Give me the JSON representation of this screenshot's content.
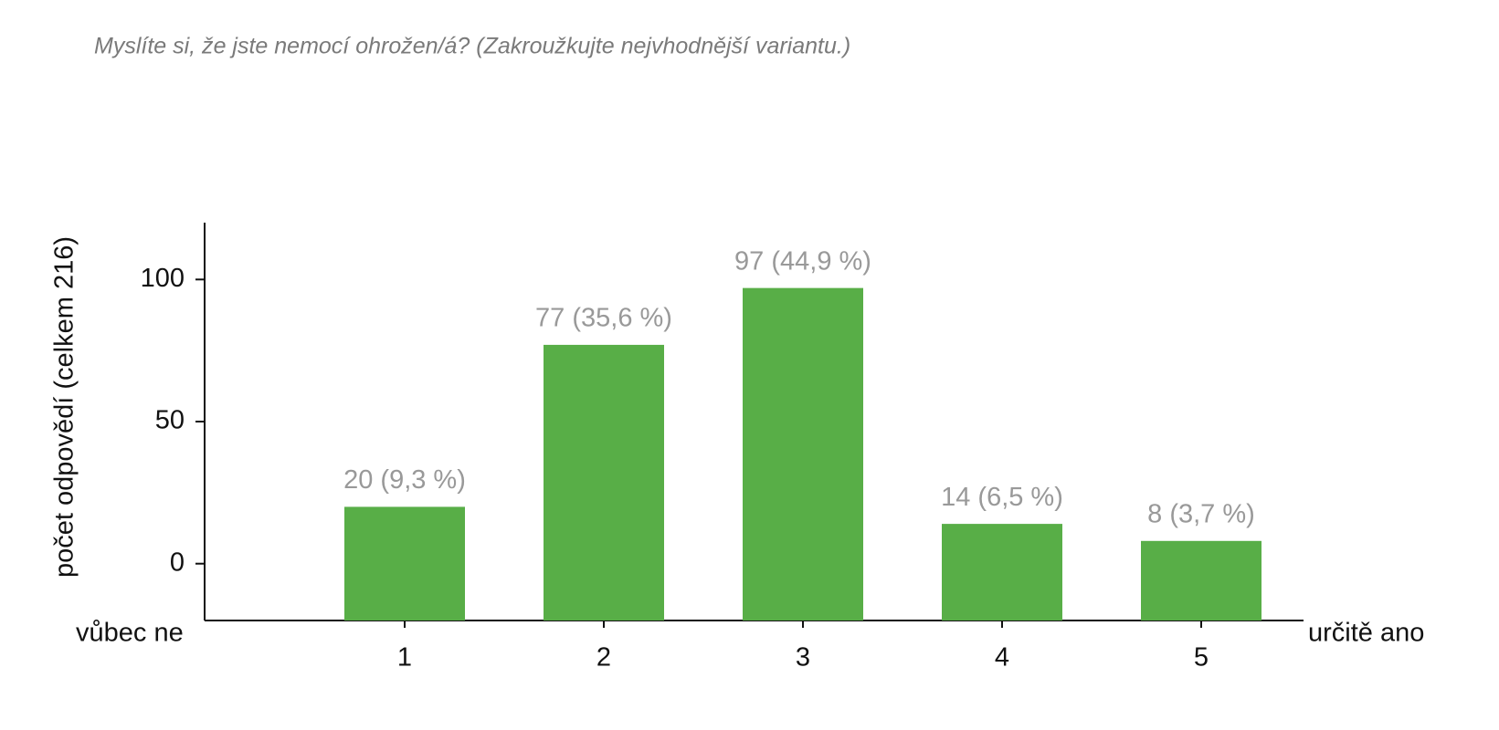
{
  "chart_data": {
    "type": "bar",
    "title": "Myslíte si, že jste nemocí ohrožen/á? (Zakroužkujte nejvhodnější variantu.)",
    "y_label": "počet odpovědí (celkem 216)",
    "x_min_label": "vůbec ne",
    "x_max_label": "určitě ano",
    "categories": [
      "1",
      "2",
      "3",
      "4",
      "5"
    ],
    "values": [
      20,
      77,
      97,
      14,
      8
    ],
    "value_labels": [
      "20 (9,3 %)",
      "77 (35,6 %)",
      "97 (44,9 %)",
      "14 (6,5 %)",
      "8 (3,7 %)"
    ],
    "color": "#58ae47",
    "ylim": [
      -20,
      120
    ],
    "yticks": [
      0,
      50,
      100
    ],
    "grid": false
  }
}
